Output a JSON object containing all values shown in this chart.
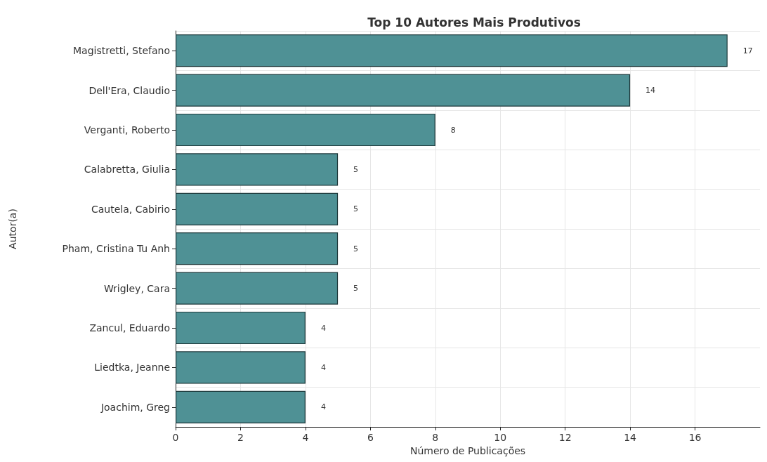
{
  "chart_data": {
    "type": "bar",
    "orientation": "horizontal",
    "title": "Top 10 Autores Mais Produtivos",
    "xlabel": "Número de Publicações",
    "ylabel": "Autor(a)",
    "categories": [
      "Magistretti, Stefano",
      "Dell'Era, Claudio",
      "Verganti, Roberto",
      "Calabretta, Giulia",
      "Cautela, Cabirio",
      "Pham, Cristina Tu Anh",
      "Wrigley, Cara",
      "Zancul, Eduardo",
      "Liedtka, Jeanne",
      "Joachim, Greg"
    ],
    "values": [
      17,
      14,
      8,
      5,
      5,
      5,
      5,
      4,
      4,
      4
    ],
    "color": "#4f9195",
    "xlim": [
      0,
      18
    ],
    "xticks": [
      0,
      2,
      4,
      6,
      8,
      10,
      12,
      14,
      16
    ],
    "grid": true,
    "data_labels": true
  }
}
